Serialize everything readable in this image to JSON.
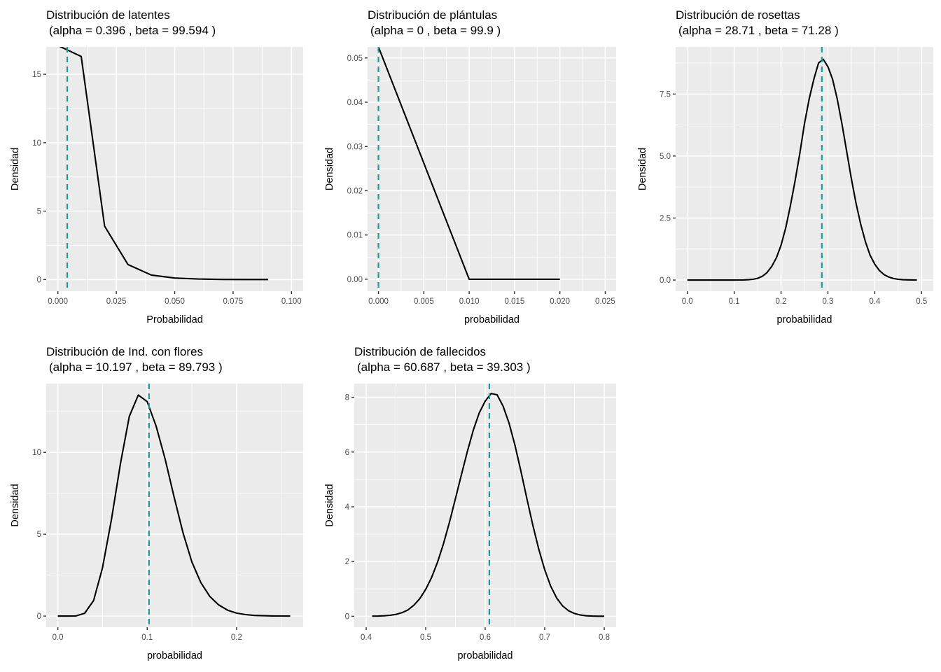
{
  "chart_data": [
    {
      "type": "line",
      "title": "Distribución de latentes",
      "subtitle": "(alpha = 0.396 , beta = 99.594 )",
      "alpha": 0.396,
      "beta": 99.594,
      "xlabel": "Probabilidad",
      "ylabel": "Densidad",
      "xlim": [
        -0.005,
        0.105
      ],
      "ylim": [
        -0.85,
        17.0
      ],
      "xticks": [
        0.0,
        0.025,
        0.05,
        0.075,
        0.1
      ],
      "xtick_labels": [
        "0.000",
        "0.025",
        "0.050",
        "0.075",
        "0.100"
      ],
      "yticks": [
        0,
        5,
        10,
        15
      ],
      "ytick_labels": [
        "0",
        "5",
        "10",
        "15"
      ],
      "grid": true,
      "x": [
        0.0,
        0.01,
        0.02,
        0.03,
        0.04,
        0.05,
        0.06,
        0.07,
        0.08,
        0.09
      ],
      "y": [
        17.1,
        16.3,
        3.9,
        1.1,
        0.33,
        0.11,
        0.04,
        0.01,
        0.005,
        0.002
      ],
      "vline": {
        "x": 0.004,
        "style": "dashed",
        "color": "#1a9c94"
      }
    },
    {
      "type": "line",
      "title": "Distribución de plántulas",
      "subtitle": "(alpha = 0 , beta = 99.9 )",
      "alpha": 0,
      "beta": 99.9,
      "xlabel": "probabilidad",
      "ylabel": "Densidad",
      "xlim": [
        -0.0012,
        0.0262
      ],
      "ylim": [
        -0.0027,
        0.0525
      ],
      "xticks": [
        0.0,
        0.005,
        0.01,
        0.015,
        0.02,
        0.025
      ],
      "xtick_labels": [
        "0.000",
        "0.005",
        "0.010",
        "0.015",
        "0.020",
        "0.025"
      ],
      "yticks": [
        0.0,
        0.01,
        0.02,
        0.03,
        0.04,
        0.05
      ],
      "ytick_labels": [
        "0.00",
        "0.01",
        "0.02",
        "0.03",
        "0.04",
        "0.05"
      ],
      "grid": true,
      "x": [
        0.0,
        0.01,
        0.02
      ],
      "y": [
        0.0525,
        0.0,
        0.0
      ],
      "vline": {
        "x": 0.0,
        "style": "dashed",
        "color": "#1a9c94"
      }
    },
    {
      "type": "line",
      "title": "Distribución de rosettas",
      "subtitle": "(alpha = 28.71 , beta = 71.28 )",
      "alpha": 28.71,
      "beta": 71.28,
      "xlabel": "probabilidad",
      "ylabel": "Densidad",
      "xlim": [
        -0.025,
        0.525
      ],
      "ylim": [
        -0.45,
        9.4
      ],
      "xticks": [
        0.0,
        0.1,
        0.2,
        0.3,
        0.4,
        0.5
      ],
      "xtick_labels": [
        "0.0",
        "0.1",
        "0.2",
        "0.3",
        "0.4",
        "0.5"
      ],
      "yticks": [
        0.0,
        2.5,
        5.0,
        7.5
      ],
      "ytick_labels": [
        "0.0",
        "2.5",
        "5.0",
        "7.5"
      ],
      "grid": true,
      "x": [
        0.0,
        0.01,
        0.02,
        0.03,
        0.04,
        0.05,
        0.06,
        0.07,
        0.08,
        0.09,
        0.1,
        0.11,
        0.12,
        0.13,
        0.14,
        0.15,
        0.16,
        0.17,
        0.18,
        0.19,
        0.2,
        0.21,
        0.22,
        0.23,
        0.24,
        0.25,
        0.26,
        0.27,
        0.28,
        0.29,
        0.3,
        0.31,
        0.32,
        0.33,
        0.34,
        0.35,
        0.36,
        0.37,
        0.38,
        0.39,
        0.4,
        0.41,
        0.42,
        0.43,
        0.44,
        0.45,
        0.46,
        0.47,
        0.48,
        0.49
      ],
      "y": [
        0,
        0,
        0,
        0,
        0,
        0,
        0,
        0,
        0,
        0,
        0,
        0.001,
        0.004,
        0.012,
        0.03,
        0.07,
        0.15,
        0.3,
        0.55,
        0.9,
        1.4,
        2.1,
        3.0,
        4.0,
        5.1,
        6.3,
        7.3,
        8.1,
        8.75,
        8.9,
        8.6,
        8.1,
        7.3,
        6.3,
        5.2,
        4.1,
        3.1,
        2.25,
        1.55,
        1.0,
        0.64,
        0.38,
        0.22,
        0.12,
        0.06,
        0.03,
        0.014,
        0.006,
        0.003,
        0.001
      ],
      "vline": {
        "x": 0.2871,
        "style": "dashed",
        "color": "#1a9c94"
      }
    },
    {
      "type": "line",
      "title": "Distribución de Ind. con flores",
      "subtitle": "(alpha = 10.197 , beta = 89.793 )",
      "alpha": 10.197,
      "beta": 89.793,
      "xlabel": "probabilidad",
      "ylabel": "Densidad",
      "xlim": [
        -0.013,
        0.2745
      ],
      "ylim": [
        -0.68,
        14.2
      ],
      "xticks": [
        0.0,
        0.1,
        0.2
      ],
      "xtick_labels": [
        "0.0",
        "0.1",
        "0.2"
      ],
      "yticks": [
        0,
        5,
        10
      ],
      "ytick_labels": [
        "0",
        "5",
        "10"
      ],
      "grid": true,
      "x": [
        0.0,
        0.01,
        0.02,
        0.03,
        0.04,
        0.05,
        0.06,
        0.07,
        0.08,
        0.09,
        0.1,
        0.11,
        0.12,
        0.13,
        0.14,
        0.15,
        0.16,
        0.17,
        0.18,
        0.19,
        0.2,
        0.21,
        0.22,
        0.23,
        0.24,
        0.25,
        0.26
      ],
      "y": [
        0,
        0,
        0.005,
        0.17,
        0.95,
        2.95,
        5.9,
        9.3,
        12.2,
        13.5,
        13.1,
        11.6,
        9.6,
        7.3,
        5.1,
        3.3,
        2.05,
        1.2,
        0.68,
        0.36,
        0.18,
        0.09,
        0.04,
        0.02,
        0.008,
        0.003,
        0.001
      ],
      "vline": {
        "x": 0.102,
        "style": "dashed",
        "color": "#1a9c94"
      }
    },
    {
      "type": "line",
      "title": "Distribución de fallecidos",
      "subtitle": "(alpha = 60.687 , beta = 39.303 )",
      "alpha": 60.687,
      "beta": 39.303,
      "xlabel": "probabilidad",
      "ylabel": "Densidad",
      "xlim": [
        0.38,
        0.82
      ],
      "ylim": [
        -0.4,
        8.5
      ],
      "xticks": [
        0.4,
        0.5,
        0.6,
        0.7,
        0.8
      ],
      "xtick_labels": [
        "0.4",
        "0.5",
        "0.6",
        "0.7",
        "0.8"
      ],
      "yticks": [
        0,
        2,
        4,
        6,
        8
      ],
      "ytick_labels": [
        "0",
        "2",
        "4",
        "6",
        "8"
      ],
      "grid": true,
      "x": [
        0.41,
        0.42,
        0.43,
        0.44,
        0.45,
        0.46,
        0.47,
        0.48,
        0.49,
        0.5,
        0.51,
        0.52,
        0.53,
        0.54,
        0.55,
        0.56,
        0.57,
        0.58,
        0.59,
        0.6,
        0.61,
        0.62,
        0.63,
        0.64,
        0.65,
        0.66,
        0.67,
        0.68,
        0.69,
        0.7,
        0.71,
        0.72,
        0.73,
        0.74,
        0.75,
        0.76,
        0.77,
        0.78,
        0.79,
        0.8
      ],
      "y": [
        0.003,
        0.007,
        0.016,
        0.034,
        0.068,
        0.13,
        0.23,
        0.4,
        0.64,
        0.98,
        1.42,
        1.98,
        2.66,
        3.44,
        4.3,
        5.17,
        6.02,
        6.8,
        7.43,
        7.86,
        8.14,
        8.09,
        7.68,
        7.06,
        6.25,
        5.3,
        4.3,
        3.33,
        2.45,
        1.7,
        1.1,
        0.67,
        0.38,
        0.2,
        0.1,
        0.045,
        0.018,
        0.007,
        0.002,
        0.001
      ],
      "vline": {
        "x": 0.607,
        "style": "dashed",
        "color": "#1a9c94"
      }
    }
  ],
  "colors": {
    "panel_bg": "#ebebeb",
    "grid": "#ffffff",
    "line": "#000000",
    "vline": "#1a9c94",
    "tick": "#333333",
    "tick_text": "#4d4d4d"
  }
}
